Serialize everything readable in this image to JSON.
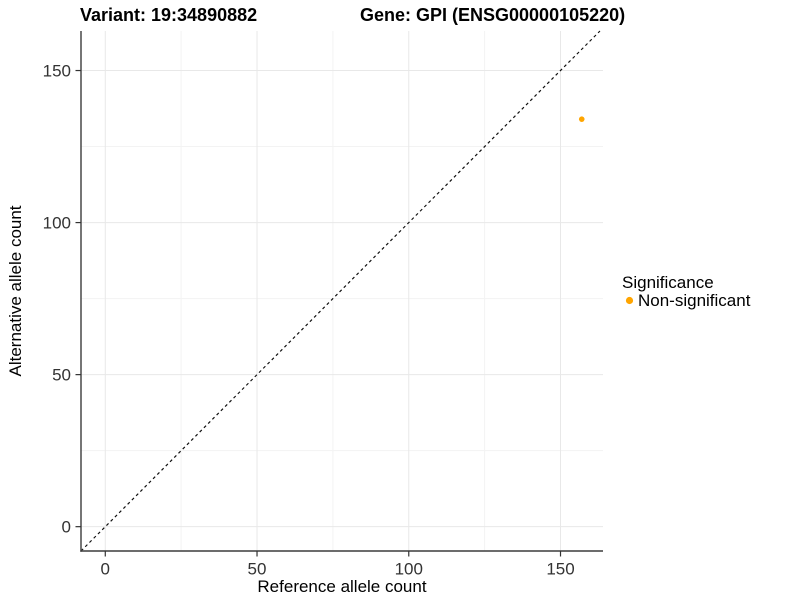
{
  "header": {
    "left_title": "Variant: 19:34890882",
    "right_title": "Gene: GPI (ENSG00000105220)"
  },
  "legend": {
    "title": "Significance",
    "position": "right",
    "items": [
      {
        "label": "Non-significant",
        "color": "#FFA500",
        "marker": "circle-icon"
      }
    ]
  },
  "chart_data": {
    "type": "scatter",
    "title_left": "Variant: 19:34890882",
    "title_right": "Gene: GPI (ENSG00000105220)",
    "xlabel": "Reference allele count",
    "ylabel": "Alternative allele count",
    "xlim": [
      -8,
      164
    ],
    "ylim": [
      -8,
      163
    ],
    "x_ticks": [
      0,
      50,
      100,
      150
    ],
    "y_ticks": [
      0,
      50,
      100,
      150
    ],
    "x_minor_ticks": [
      25,
      75,
      125
    ],
    "y_minor_ticks": [
      25,
      75,
      125
    ],
    "grid": "major+minor",
    "legend_position": "right",
    "identity_line": {
      "slope": 1,
      "intercept": 0,
      "dashed": true,
      "color": "#111111"
    },
    "series": [
      {
        "name": "Non-significant",
        "color": "#FFA500",
        "points": [
          {
            "x": 157,
            "y": 134
          }
        ]
      }
    ]
  },
  "style": {
    "background": "#FFFFFF",
    "grid_major_color": "#E8E8E8",
    "grid_minor_color": "#F3F3F3",
    "axis_line_color": "#3C3C3C",
    "tick_mark_color": "#333333",
    "tick_text_color": "#333333",
    "point_color": "#FFA500"
  }
}
